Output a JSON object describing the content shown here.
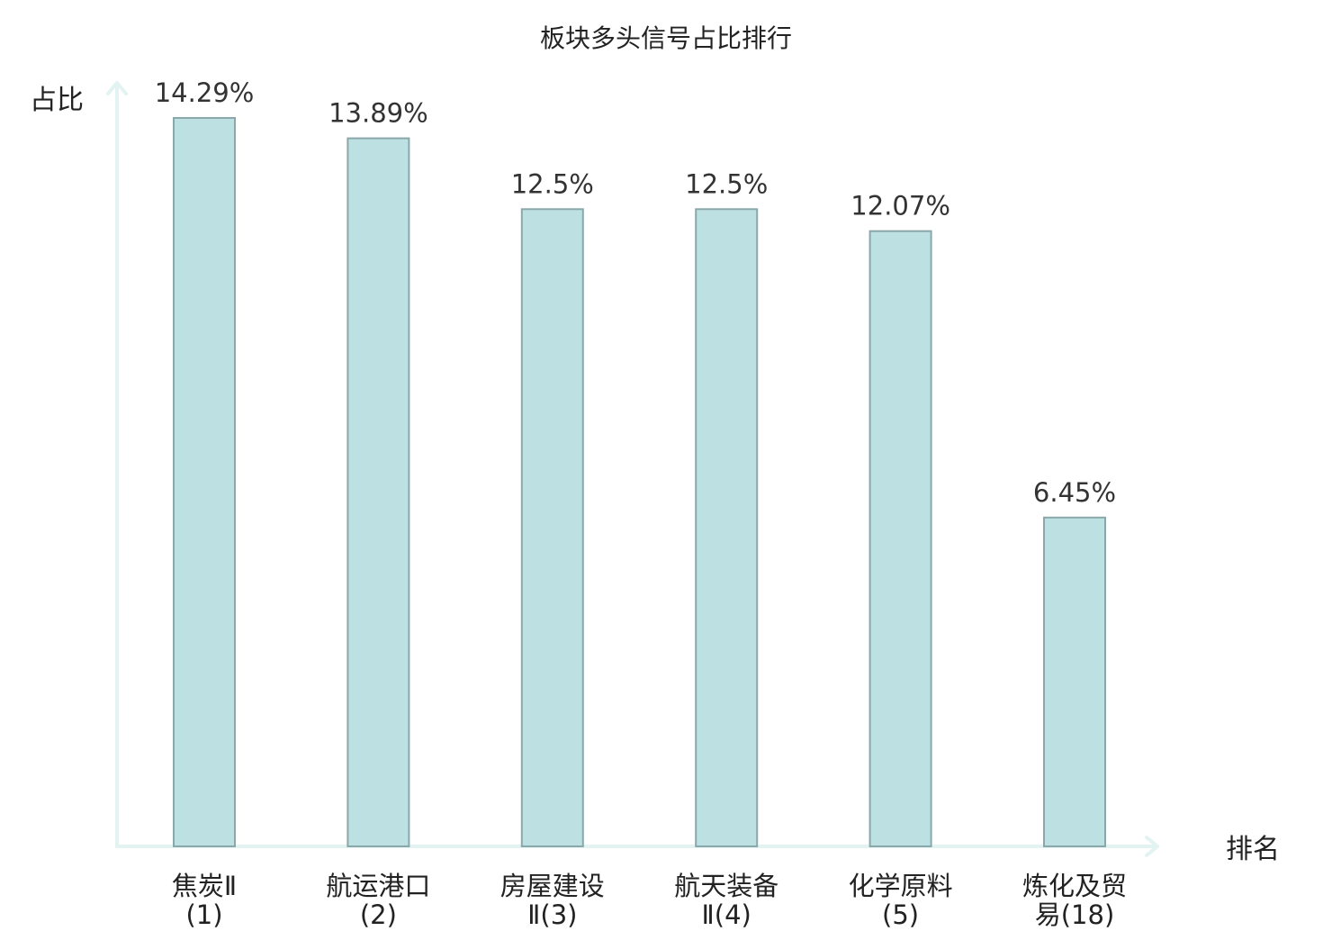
{
  "chart_data": {
    "type": "bar",
    "title": "板块多头信号占比排行",
    "ylabel": "占比",
    "xlabel": "排名",
    "categories": [
      {
        "name": "焦炭Ⅱ",
        "rank": "(1)",
        "lines": [
          "焦炭Ⅱ",
          "(1)"
        ],
        "highlight": false
      },
      {
        "name": "航运港口",
        "rank": "(2)",
        "lines": [
          "航运港口",
          "(2)"
        ],
        "highlight": false
      },
      {
        "name": "房屋建设Ⅱ",
        "rank": "(3)",
        "lines": [
          "房屋建设",
          "Ⅱ(3)"
        ],
        "highlight": false
      },
      {
        "name": "航天装备Ⅱ",
        "rank": "(4)",
        "lines": [
          "航天装备",
          "Ⅱ(4)"
        ],
        "highlight": false
      },
      {
        "name": "化学原料",
        "rank": "(5)",
        "lines": [
          "化学原料",
          "(5)"
        ],
        "highlight": false
      },
      {
        "name": "炼化及贸易",
        "rank": "(18)",
        "lines": [
          "炼化及贸",
          "易(18)"
        ],
        "highlight": true
      }
    ],
    "values": [
      14.29,
      13.89,
      12.5,
      12.5,
      12.07,
      6.45
    ],
    "value_labels": [
      "14.29%",
      "13.89%",
      "12.5%",
      "12.5%",
      "12.07%",
      "6.45%"
    ],
    "ylim": [
      0,
      14.29
    ],
    "grid": false,
    "legend": "none",
    "colors": {
      "bar_fill": "#bde0e2",
      "bar_stroke": "#8aa8aa",
      "axis": "#e2f3f1",
      "text": "#222222",
      "value_text": "#333333",
      "highlight_text": "#e0191c"
    }
  }
}
